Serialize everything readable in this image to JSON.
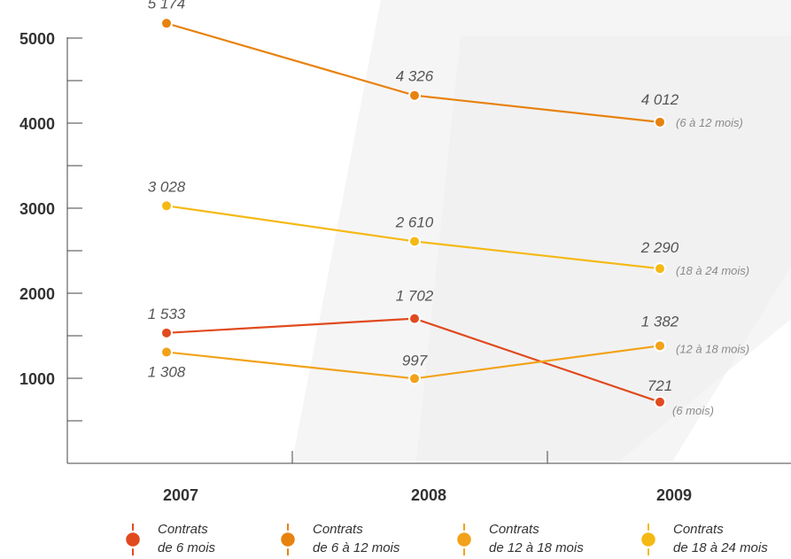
{
  "chart_data": {
    "type": "line",
    "title": "",
    "xlabel": "",
    "ylabel": "",
    "x": [
      "2007",
      "2008",
      "2009"
    ],
    "ylim": [
      0,
      5000
    ],
    "y_ticks": [
      "1000",
      "2000",
      "3000",
      "4000",
      "5000"
    ],
    "grid": false,
    "legend_position": "bottom",
    "series": [
      {
        "name": "Contrats de 6 à 12 mois",
        "color": "#e8820e",
        "values": [
          5174,
          4326,
          4012
        ],
        "value_labels": [
          "5 174",
          "4 326",
          "4 012"
        ],
        "end_label": "(6 à 12 mois)"
      },
      {
        "name": "Contrats de 18 à 24 mois",
        "color": "#f5b914",
        "values": [
          3028,
          2610,
          2290
        ],
        "value_labels": [
          "3 028",
          "2 610",
          "2 290"
        ],
        "end_label": "(18 à 24 mois)"
      },
      {
        "name": "Contrats de 6 mois",
        "color": "#e04a1e",
        "values": [
          1533,
          1702,
          721
        ],
        "value_labels": [
          "1 533",
          "1 702",
          "721"
        ],
        "end_label": "(6 mois)"
      },
      {
        "name": "Contrats de 12 à 18 mois",
        "color": "#f2a219",
        "values": [
          1308,
          997,
          1382
        ],
        "value_labels": [
          "1 308",
          "997",
          "1 382"
        ],
        "end_label": "(12 à 18 mois)"
      }
    ]
  },
  "legend": [
    {
      "line1": "Contrats",
      "line2": "de 6 mois",
      "color": "#e04a1e"
    },
    {
      "line1": "Contrats",
      "line2": "de 6 à 12 mois",
      "color": "#e8820e"
    },
    {
      "line1": "Contrats",
      "line2": "de 12 à 18 mois",
      "color": "#f2a219"
    },
    {
      "line1": "Contrats",
      "line2": "de 18 à 24 mois",
      "color": "#f5b914"
    }
  ]
}
